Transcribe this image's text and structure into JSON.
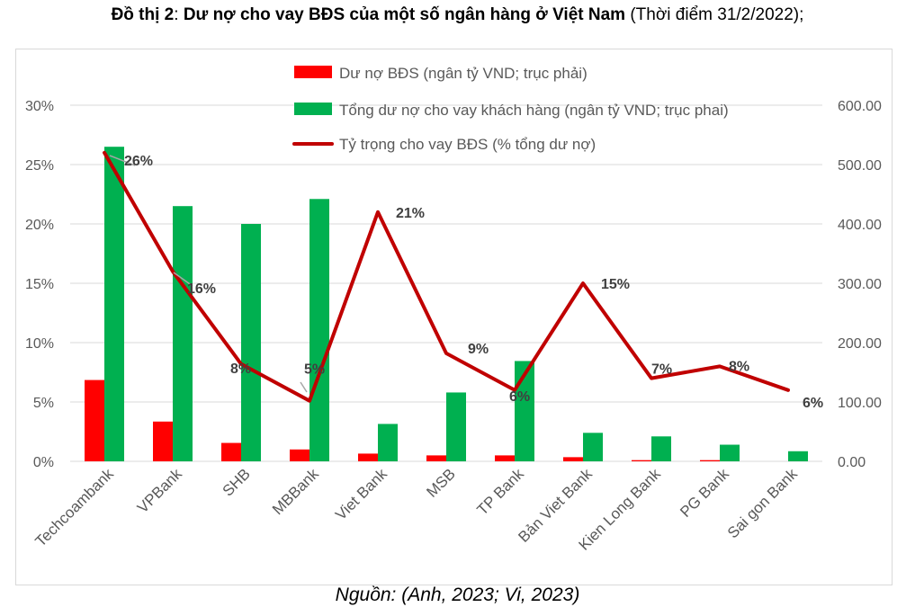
{
  "title": {
    "bold_prefix": "Đồ thị 2",
    "colon": ": ",
    "bold_main": "Dư nợ cho vay BĐS của một số ngân hàng ở Việt Nam",
    "rest": " (Thời điểm 31/2/2022);"
  },
  "source": "Nguồn: (Anh, 2023; Vi, 2023)",
  "colors": {
    "red": "#ff0000",
    "green": "#00b050",
    "line": "#c00000",
    "grid": "#d9d9d9"
  },
  "chart_data": {
    "type": "bar",
    "title": "Dư nợ cho vay BĐS của một số ngân hàng ở Việt Nam",
    "categories": [
      "Techcoambank",
      "VPBank",
      "SHB",
      "MBBank",
      "Viet Bank",
      "MSB",
      "TP Bank",
      "Bản Viet Bank",
      "Kien Long Bank",
      "PG Bank",
      "Sai gon Bank"
    ],
    "series": [
      {
        "name": "Dư nợ BĐS (ngân tỷ VND; trục phải)",
        "type": "bar",
        "axis": "right",
        "color": "#ff0000",
        "values": [
          137,
          67,
          31,
          20,
          13,
          10,
          10,
          7,
          2,
          2,
          0
        ]
      },
      {
        "name": "Tổng dư nợ cho vay khách hàng (ngân tỷ VND; trục phai)",
        "type": "bar",
        "axis": "right",
        "color": "#00b050",
        "values": [
          530,
          430,
          400,
          442,
          63,
          116,
          169,
          48,
          42,
          28,
          17
        ]
      },
      {
        "name": "Tỷ trọng cho vay BĐS (% tổng dư nợ)",
        "type": "line",
        "axis": "left",
        "color": "#c00000",
        "values": [
          26,
          16,
          8.2,
          5.1,
          21,
          9.1,
          6,
          15,
          7,
          8,
          6
        ],
        "labels": [
          "26%",
          "16%",
          "8%",
          "5%",
          "21%",
          "9%",
          "6%",
          "15%",
          "7%",
          "8%",
          "6%"
        ]
      }
    ],
    "left_axis": {
      "ylim": [
        0,
        30
      ],
      "ticks": [
        "0%",
        "5%",
        "10%",
        "15%",
        "20%",
        "25%",
        "30%"
      ]
    },
    "right_axis": {
      "ylim": [
        0,
        600
      ],
      "ticks": [
        "0.00",
        "100.00",
        "200.00",
        "300.00",
        "400.00",
        "500.00",
        "600.00"
      ]
    },
    "legend_position": "top-center",
    "grid": true
  }
}
